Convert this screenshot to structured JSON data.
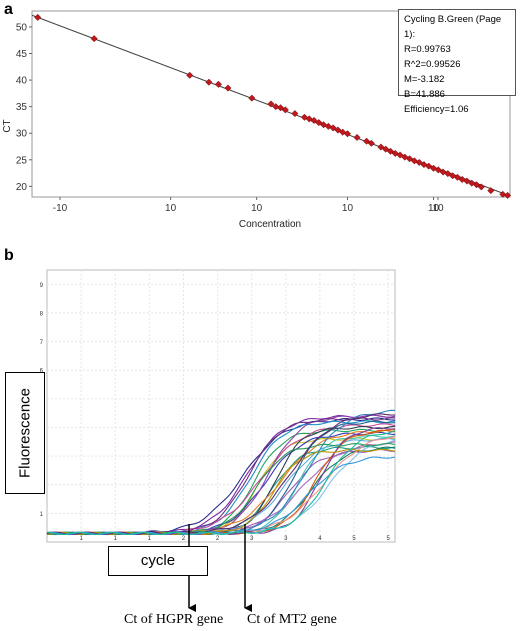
{
  "panels": {
    "a": "a",
    "b": "b"
  },
  "chart_data": [
    {
      "type": "scatter",
      "title": "",
      "xlabel": "Concentration",
      "ylabel": "CT",
      "x_tick_labels": [
        "-10",
        "10",
        "10",
        "10",
        "10",
        "10"
      ],
      "y_ticks": [
        20,
        25,
        30,
        35,
        40,
        45,
        50
      ],
      "ylim": [
        18,
        53
      ],
      "xlim": [
        0,
        1
      ],
      "x_scale": "log",
      "legend": {
        "placement": "top-right",
        "lines": [
          "Cycling B.Green (Page 1):",
          "R=0.99763",
          "R^2=0.99526",
          "M=-3.182",
          "B=41.886",
          "Efficiency=1.06"
        ]
      },
      "fit_line": {
        "x": [
          0,
          1
        ],
        "y": [
          52.2,
          18.2
        ]
      },
      "points_x": [
        0.012,
        0.13,
        0.33,
        0.37,
        0.39,
        0.41,
        0.46,
        0.5,
        0.51,
        0.52,
        0.53,
        0.55,
        0.57,
        0.58,
        0.59,
        0.6,
        0.61,
        0.62,
        0.63,
        0.64,
        0.65,
        0.66,
        0.68,
        0.7,
        0.71,
        0.73,
        0.74,
        0.75,
        0.76,
        0.77,
        0.78,
        0.79,
        0.8,
        0.81,
        0.82,
        0.83,
        0.84,
        0.85,
        0.86,
        0.87,
        0.88,
        0.89,
        0.9,
        0.91,
        0.92,
        0.93,
        0.94,
        0.96,
        0.985,
        0.995
      ],
      "points_y": [
        51.8,
        47.8,
        40.9,
        39.6,
        39.2,
        38.5,
        36.6,
        35.5,
        35.0,
        34.8,
        34.4,
        33.7,
        33.0,
        32.7,
        32.4,
        32.0,
        31.6,
        31.3,
        31.0,
        30.6,
        30.2,
        29.9,
        29.2,
        28.5,
        28.1,
        27.4,
        27.0,
        26.6,
        26.2,
        25.9,
        25.5,
        25.2,
        24.8,
        24.5,
        24.1,
        23.8,
        23.4,
        23.1,
        22.7,
        22.4,
        22.0,
        21.7,
        21.3,
        21.0,
        20.6,
        20.3,
        19.9,
        19.2,
        18.5,
        18.3
      ]
    },
    {
      "type": "line",
      "title": "",
      "xlabel": "cycle",
      "ylabel": "Fluorescence",
      "y_tick_labels": [
        "1",
        "2",
        "3",
        "4",
        "5",
        "6",
        "7",
        "8",
        "9"
      ],
      "x_tick_labels": [
        "1",
        "1",
        "1",
        "2",
        "2",
        "3",
        "3",
        "4",
        "5",
        "5"
      ],
      "xlim": [
        0,
        40
      ],
      "ylim": [
        0,
        9.5
      ],
      "baseline": 0.3,
      "curve_midpoints": [
        22.5,
        23.0,
        23.4,
        23.8,
        24.2,
        24.6,
        25.0,
        25.4,
        25.8,
        26.3,
        26.8,
        27.3,
        27.8,
        28.3,
        28.8,
        29.3,
        29.8,
        30.3,
        30.8,
        31.3,
        31.8,
        32.3,
        23.1,
        24.0,
        26.0,
        28.0,
        30.0,
        32.0
      ],
      "curve_plateaus": [
        4.3,
        4.4,
        4.2,
        3.9,
        3.6,
        4.1,
        3.8,
        4.4,
        3.3,
        4.0,
        3.9,
        3.6,
        3.2,
        4.2,
        3.7,
        3.5,
        4.6,
        3.3,
        3.9,
        4.0,
        3.8,
        3.6,
        4.3,
        3.4,
        3.2,
        4.5,
        3.0,
        3.9
      ],
      "curve_colors": [
        "#2a2a8c",
        "#7a2aa6",
        "#1e90c8",
        "#26a65b",
        "#c8c828",
        "#d04a9a",
        "#3a3ab8",
        "#8e44ad",
        "#16a085",
        "#2c3e50",
        "#e67e22",
        "#5dade2",
        "#9b59b6",
        "#1f618d",
        "#48c9b0",
        "#a569bd",
        "#2e86c1",
        "#117a65",
        "#d35400",
        "#7d3c98",
        "#f1948a",
        "#85c1e9",
        "#6c3483",
        "#239b56",
        "#b7950b",
        "#5b2c6f",
        "#3498db",
        "#1abc9c"
      ]
    }
  ],
  "annotations": {
    "fluorescence_label": "Fluorescence",
    "cycle_label": "cycle",
    "ct_hgpr": "Ct of HGPR gene",
    "ct_mt2": "Ct  of  MT2 gene"
  },
  "colors": {
    "marker": "#c0181c",
    "fit_line": "#444444"
  }
}
